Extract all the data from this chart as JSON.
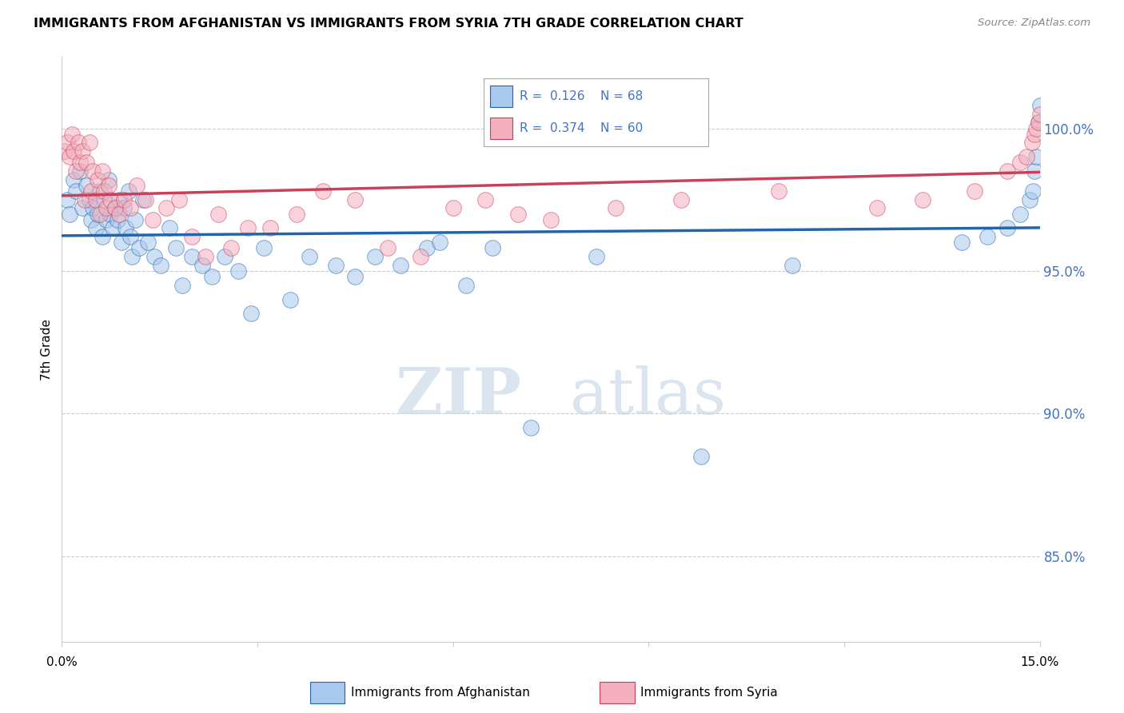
{
  "title": "IMMIGRANTS FROM AFGHANISTAN VS IMMIGRANTS FROM SYRIA 7TH GRADE CORRELATION CHART",
  "source": "Source: ZipAtlas.com",
  "ylabel": "7th Grade",
  "y_ticks": [
    85.0,
    90.0,
    95.0,
    100.0
  ],
  "y_tick_labels": [
    "85.0%",
    "90.0%",
    "95.0%",
    "100.0%"
  ],
  "x_min": 0.0,
  "x_max": 15.0,
  "y_min": 82.0,
  "y_max": 102.5,
  "legend_r_afg": "0.126",
  "legend_n_afg": "68",
  "legend_r_syr": "0.374",
  "legend_n_syr": "60",
  "color_afg": "#a8c8ee",
  "color_syr": "#f4b0be",
  "line_color_afg": "#2166ac",
  "line_color_syr": "#c9405a",
  "watermark_zip": "ZIP",
  "watermark_atlas": "atlas",
  "afg_x": [
    0.08,
    0.12,
    0.18,
    0.22,
    0.28,
    0.32,
    0.38,
    0.42,
    0.45,
    0.48,
    0.52,
    0.55,
    0.58,
    0.62,
    0.65,
    0.68,
    0.72,
    0.75,
    0.78,
    0.82,
    0.85,
    0.88,
    0.92,
    0.95,
    0.98,
    1.02,
    1.05,
    1.08,
    1.12,
    1.18,
    1.25,
    1.32,
    1.42,
    1.52,
    1.65,
    1.75,
    1.85,
    2.0,
    2.15,
    2.3,
    2.5,
    2.7,
    2.9,
    3.1,
    3.5,
    3.8,
    4.2,
    4.5,
    4.8,
    5.2,
    5.6,
    5.8,
    6.2,
    6.6,
    7.2,
    8.2,
    9.8,
    11.2,
    13.8,
    14.2,
    14.5,
    14.7,
    14.85,
    14.9,
    14.92,
    14.95,
    14.98,
    15.0
  ],
  "afg_y": [
    97.5,
    97.0,
    98.2,
    97.8,
    98.5,
    97.2,
    98.0,
    97.5,
    96.8,
    97.2,
    96.5,
    97.0,
    97.8,
    96.2,
    97.5,
    96.8,
    98.2,
    97.0,
    96.5,
    97.2,
    96.8,
    97.5,
    96.0,
    97.2,
    96.5,
    97.8,
    96.2,
    95.5,
    96.8,
    95.8,
    97.5,
    96.0,
    95.5,
    95.2,
    96.5,
    95.8,
    94.5,
    95.5,
    95.2,
    94.8,
    95.5,
    95.0,
    93.5,
    95.8,
    94.0,
    95.5,
    95.2,
    94.8,
    95.5,
    95.2,
    95.8,
    96.0,
    94.5,
    95.8,
    89.5,
    95.5,
    88.5,
    95.2,
    96.0,
    96.2,
    96.5,
    97.0,
    97.5,
    97.8,
    98.5,
    99.0,
    100.2,
    100.8
  ],
  "syr_x": [
    0.05,
    0.08,
    0.12,
    0.15,
    0.18,
    0.22,
    0.25,
    0.28,
    0.32,
    0.35,
    0.38,
    0.42,
    0.45,
    0.48,
    0.52,
    0.55,
    0.58,
    0.62,
    0.65,
    0.68,
    0.72,
    0.75,
    0.82,
    0.88,
    0.95,
    1.05,
    1.15,
    1.28,
    1.4,
    1.6,
    1.8,
    2.0,
    2.2,
    2.4,
    2.6,
    2.85,
    3.2,
    3.6,
    4.0,
    4.5,
    5.0,
    5.5,
    6.0,
    6.5,
    7.0,
    7.5,
    8.5,
    9.5,
    11.0,
    12.5,
    13.2,
    14.0,
    14.5,
    14.7,
    14.8,
    14.88,
    14.92,
    14.95,
    14.98,
    15.0
  ],
  "syr_y": [
    99.2,
    99.5,
    99.0,
    99.8,
    99.2,
    98.5,
    99.5,
    98.8,
    99.2,
    97.5,
    98.8,
    99.5,
    97.8,
    98.5,
    97.5,
    98.2,
    97.0,
    98.5,
    97.8,
    97.2,
    98.0,
    97.5,
    97.2,
    97.0,
    97.5,
    97.2,
    98.0,
    97.5,
    96.8,
    97.2,
    97.5,
    96.2,
    95.5,
    97.0,
    95.8,
    96.5,
    96.5,
    97.0,
    97.8,
    97.5,
    95.8,
    95.5,
    97.2,
    97.5,
    97.0,
    96.8,
    97.2,
    97.5,
    97.8,
    97.2,
    97.5,
    97.8,
    98.5,
    98.8,
    99.0,
    99.5,
    99.8,
    100.0,
    100.2,
    100.5
  ]
}
